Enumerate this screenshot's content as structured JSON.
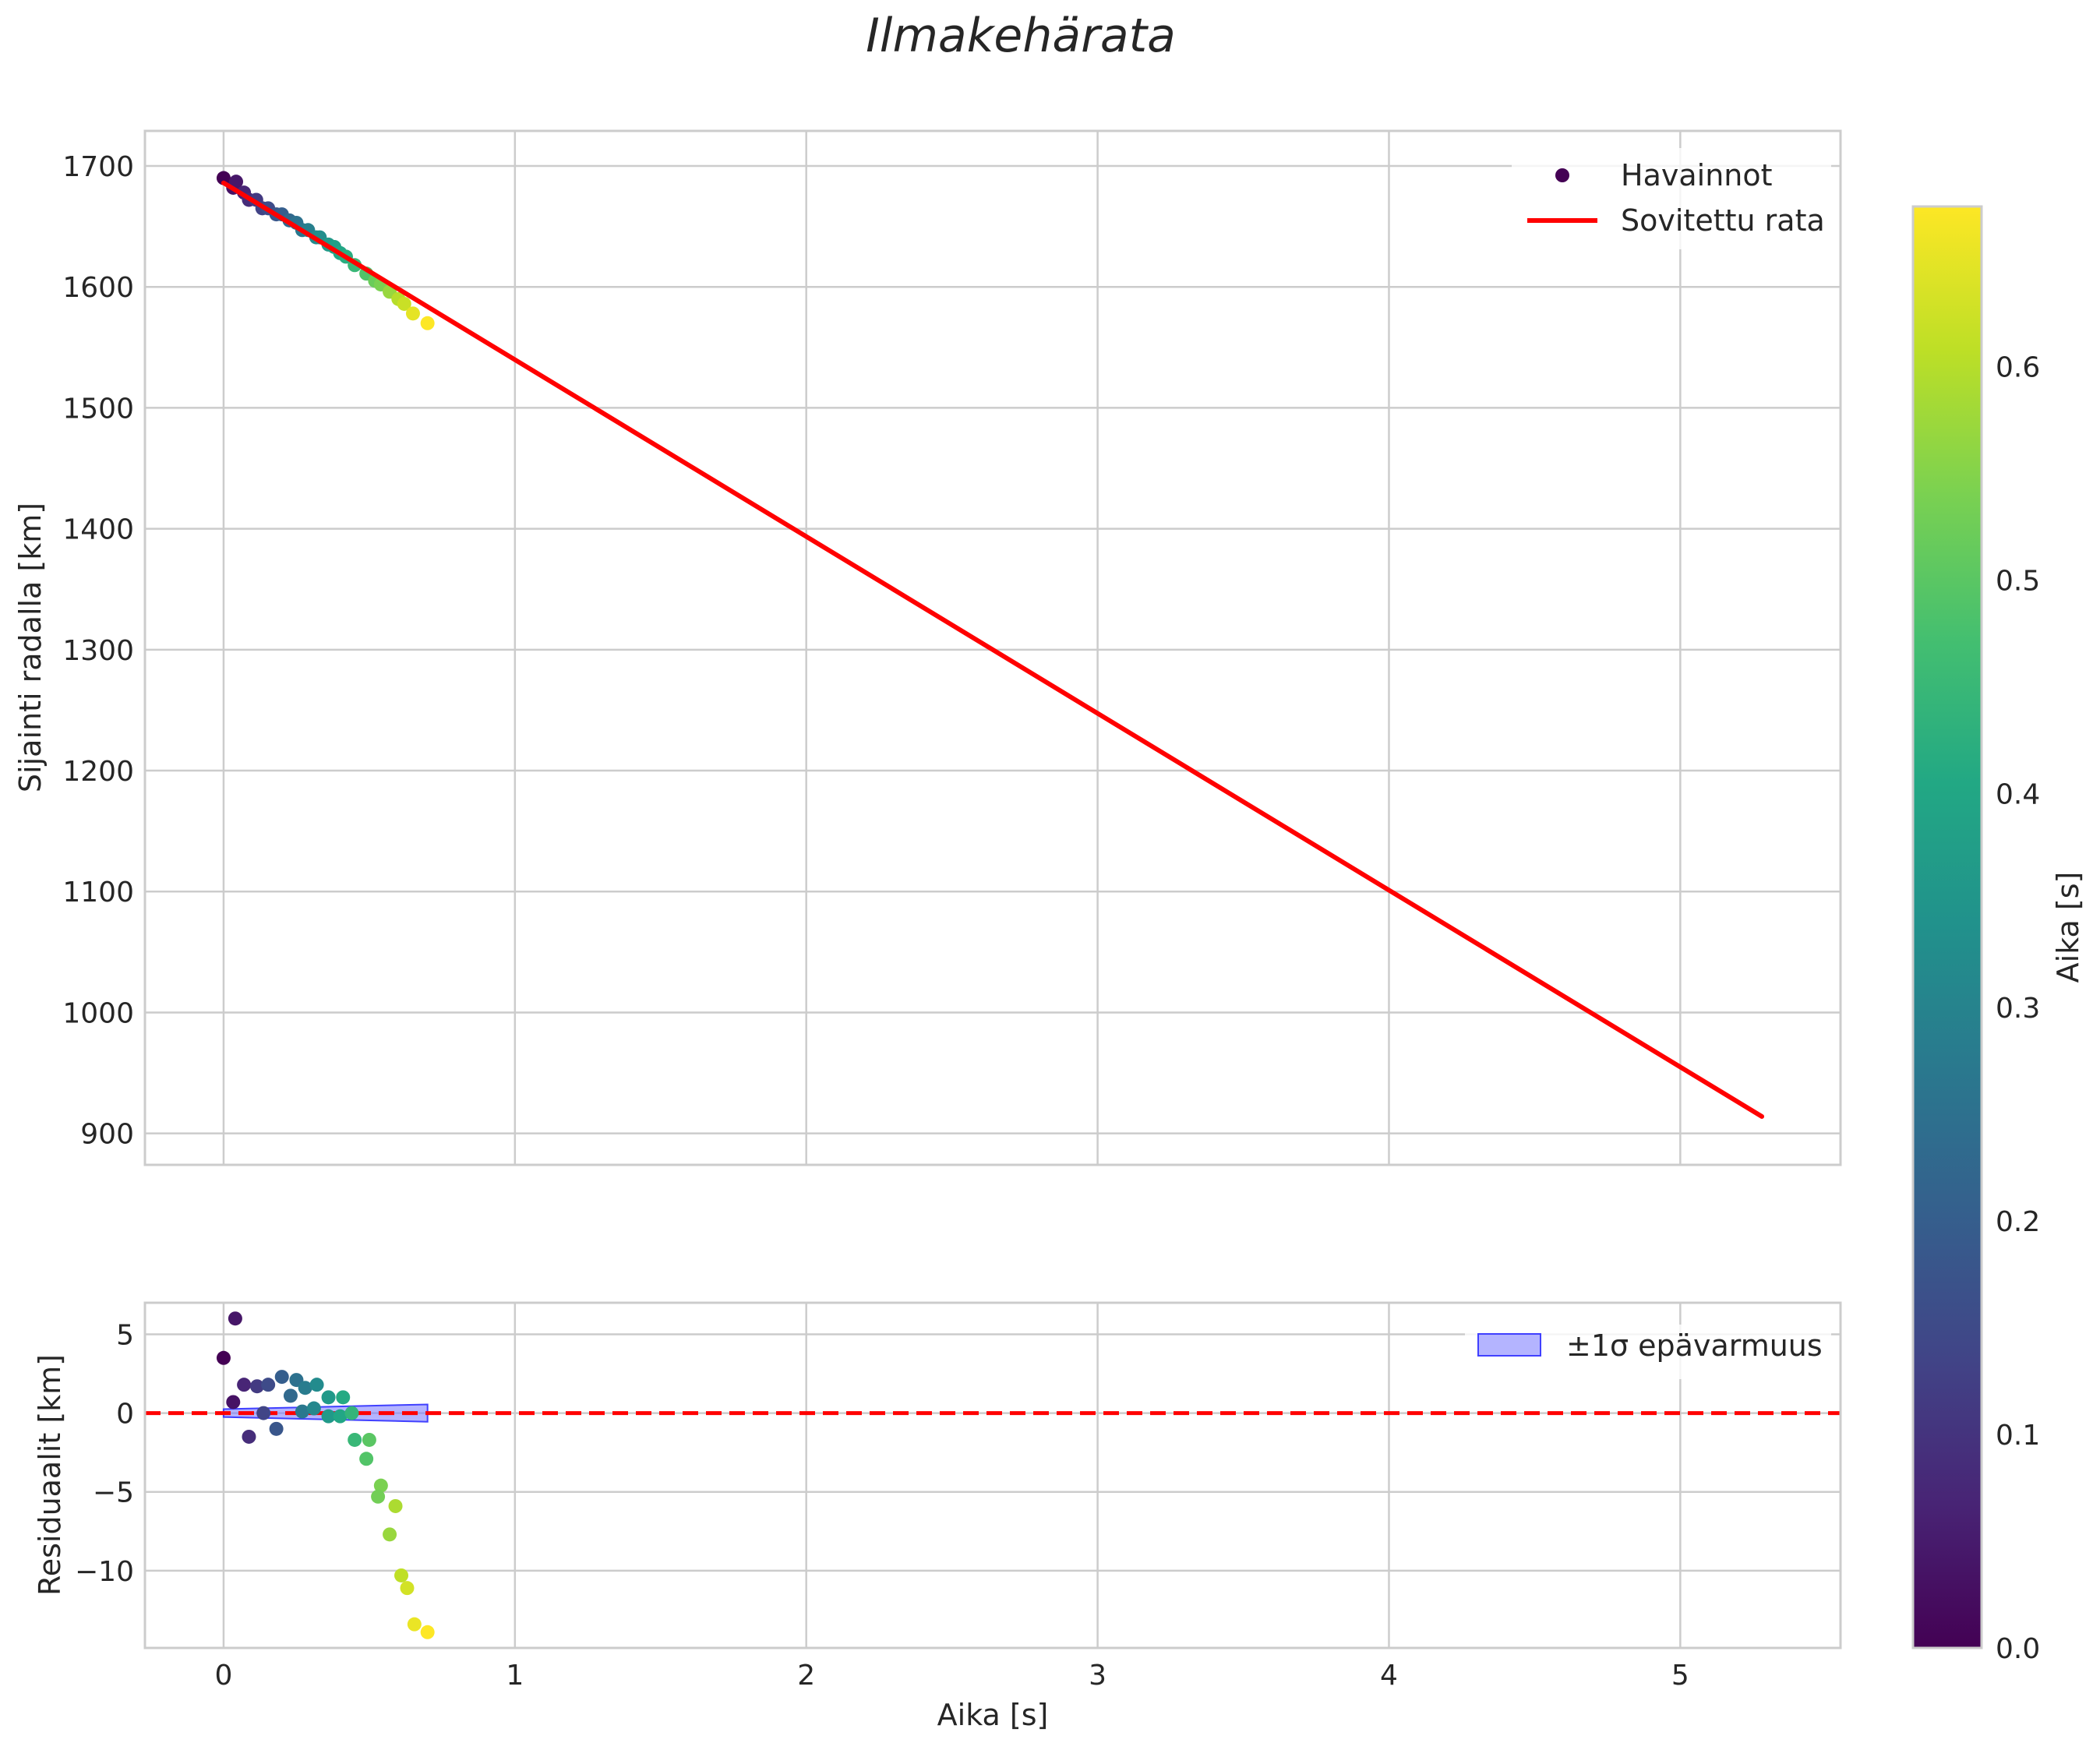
{
  "colors": {
    "fit_line": "#ff0000",
    "zero_line": "#ff0000",
    "band_fill": "#7777ff",
    "band_edge": "#4040ff",
    "grid": "#cccccc",
    "colormap": "viridis"
  },
  "chart_data": {
    "title": "Ilmakehärata",
    "colorbar": {
      "label": "Aika [s]",
      "range": [
        0,
        0.675
      ],
      "ticks": [
        "0.0",
        "0.1",
        "0.2",
        "0.3",
        "0.4",
        "0.5",
        "0.6"
      ],
      "tick_values": [
        0,
        0.1,
        0.2,
        0.3,
        0.4,
        0.5,
        0.6
      ]
    },
    "xlabel": "Aika [s]",
    "xlim": [
      -0.27,
      5.55
    ],
    "xticks": [
      "0",
      "1",
      "2",
      "3",
      "4",
      "5"
    ],
    "xtick_values": [
      0,
      1,
      2,
      3,
      4,
      5
    ],
    "charts": [
      {
        "type": "scatter+line",
        "ylabel": "Sijainti radalla [km]",
        "ylim": [
          874,
          1729
        ],
        "yticks": [
          "900",
          "1000",
          "1100",
          "1200",
          "1300",
          "1400",
          "1500",
          "1600",
          "1700"
        ],
        "ytick_values": [
          900,
          1000,
          1100,
          1200,
          1300,
          1400,
          1500,
          1600,
          1700
        ],
        "legend": {
          "placement": "top-right",
          "scatter_label": "Havainnot",
          "line_label": "Sovitettu rata"
        },
        "fit_line": {
          "x": [
            0,
            5.28
          ],
          "y": [
            1686,
            914
          ]
        },
        "observations": {
          "t": [
            0.0,
            0.033,
            0.043,
            0.07,
            0.087,
            0.112,
            0.133,
            0.153,
            0.181,
            0.2,
            0.226,
            0.25,
            0.27,
            0.29,
            0.318,
            0.33,
            0.36,
            0.38,
            0.4,
            0.42,
            0.45,
            0.49,
            0.52,
            0.54,
            0.57,
            0.6,
            0.62,
            0.65,
            0.7
          ],
          "y": [
            1690,
            1682,
            1687,
            1678,
            1672,
            1672,
            1665,
            1665,
            1660,
            1660,
            1655,
            1653,
            1647,
            1647,
            1641,
            1641,
            1635,
            1633,
            1628,
            1625,
            1618,
            1611,
            1605,
            1602,
            1596,
            1590,
            1586,
            1578,
            1570
          ]
        }
      },
      {
        "type": "scatter",
        "ylabel": "Residuaalit [km]",
        "ylim": [
          -14.9,
          7.0
        ],
        "yticks": [
          "5",
          "0",
          "−5",
          "−10"
        ],
        "ytick_values": [
          5,
          0,
          -5,
          -10
        ],
        "legend": {
          "placement": "top-right",
          "band_label": "±1σ epävarmuus"
        },
        "zero_line": 0,
        "band": {
          "x": [
            0.0,
            0.7
          ],
          "y_low": [
            -0.25,
            -0.55
          ],
          "y_high": [
            0.25,
            0.55
          ]
        },
        "residuals": {
          "t": [
            0.0,
            0.033,
            0.04,
            0.07,
            0.087,
            0.115,
            0.137,
            0.153,
            0.181,
            0.2,
            0.23,
            0.25,
            0.27,
            0.28,
            0.31,
            0.32,
            0.36,
            0.36,
            0.4,
            0.41,
            0.44,
            0.45,
            0.5,
            0.49,
            0.54,
            0.53,
            0.57,
            0.59,
            0.61,
            0.63,
            0.655,
            0.7
          ],
          "y": [
            3.5,
            0.7,
            6.0,
            1.8,
            -1.5,
            1.7,
            0.0,
            1.8,
            -1.0,
            2.3,
            1.1,
            2.1,
            0.1,
            1.6,
            0.3,
            1.8,
            -0.2,
            1.0,
            -0.2,
            1.0,
            0.0,
            -1.7,
            -1.7,
            -2.9,
            -4.6,
            -5.3,
            -7.7,
            -5.9,
            -10.3,
            -11.1,
            -13.4,
            -13.9
          ]
        }
      }
    ]
  }
}
